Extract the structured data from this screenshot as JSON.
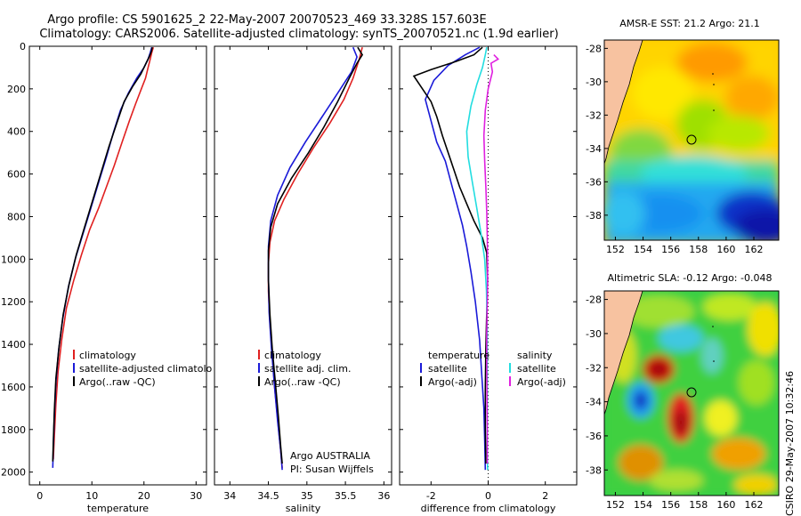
{
  "header": {
    "line1": "Argo profile: CS 5901625_2 22-May-2007 20070523_469 33.328S 157.603E",
    "line2": "Climatology: CARS2006. Satellite-adjusted climatology: synTS_20070521.nc (1.9d earlier)"
  },
  "colors": {
    "climatology": "#e02020",
    "satellite": "#1a1ad8",
    "argo": "#000000",
    "sal_satellite": "#22dde0",
    "sal_argo": "#e020e0",
    "land": "#f7c2a0"
  },
  "chart_data": [
    {
      "id": "temperature",
      "type": "line",
      "xlabel": "temperature",
      "ylabel": "",
      "xlim": [
        -2,
        32
      ],
      "ylim": [
        0,
        2060
      ],
      "y_reversed": true,
      "xticks": [
        "0",
        "10",
        "20",
        "30"
      ],
      "xtick_values": [
        0,
        10,
        20,
        30
      ],
      "yticks": [
        "0",
        "200",
        "400",
        "600",
        "800",
        "1000",
        "1200",
        "1400",
        "1600",
        "1800",
        "2000"
      ],
      "ytick_values": [
        0,
        200,
        400,
        600,
        800,
        1000,
        1200,
        1400,
        1600,
        1800,
        2000
      ],
      "legend": [
        "climatology",
        "satellite-adjusted climatolo",
        "Argo(..raw -QC)"
      ],
      "series": [
        {
          "name": "climatology",
          "color": "#e02020",
          "points": [
            [
              21.8,
              5
            ],
            [
              21.5,
              30
            ],
            [
              21.2,
              60
            ],
            [
              20.8,
              100
            ],
            [
              20.3,
              150
            ],
            [
              19.5,
              200
            ],
            [
              18.4,
              270
            ],
            [
              17.2,
              350
            ],
            [
              15.8,
              450
            ],
            [
              14.3,
              560
            ],
            [
              12.8,
              660
            ],
            [
              11.3,
              760
            ],
            [
              9.6,
              860
            ],
            [
              8,
              980
            ],
            [
              6.5,
              1100
            ],
            [
              5.1,
              1230
            ],
            [
              4.2,
              1380
            ],
            [
              3.5,
              1530
            ],
            [
              3.1,
              1680
            ],
            [
              2.8,
              1830
            ],
            [
              2.6,
              1940
            ]
          ]
        },
        {
          "name": "satellite-adjusted climatology",
          "color": "#1a1ad8",
          "points": [
            [
              21.5,
              5
            ],
            [
              21.2,
              30
            ],
            [
              20.8,
              60
            ],
            [
              20,
              100
            ],
            [
              18.6,
              150
            ],
            [
              17,
              220
            ],
            [
              15.5,
              300
            ],
            [
              14.2,
              400
            ],
            [
              12.8,
              520
            ],
            [
              11.3,
              640
            ],
            [
              9.8,
              760
            ],
            [
              8.3,
              880
            ],
            [
              6.8,
              1000
            ],
            [
              5.5,
              1130
            ],
            [
              4.4,
              1280
            ],
            [
              3.6,
              1430
            ],
            [
              3.1,
              1580
            ],
            [
              2.8,
              1730
            ],
            [
              2.6,
              1880
            ],
            [
              2.5,
              1980
            ]
          ]
        },
        {
          "name": "Argo(..raw -QC)",
          "color": "#000000",
          "points": [
            [
              21.6,
              5
            ],
            [
              21.4,
              25
            ],
            [
              21,
              50
            ],
            [
              20.4,
              80
            ],
            [
              19.4,
              130
            ],
            [
              17.8,
              190
            ],
            [
              16.2,
              260
            ],
            [
              14.8,
              360
            ],
            [
              13.3,
              470
            ],
            [
              11.8,
              590
            ],
            [
              10.2,
              720
            ],
            [
              8.6,
              850
            ],
            [
              7,
              980
            ],
            [
              5.6,
              1120
            ],
            [
              4.5,
              1260
            ],
            [
              3.7,
              1410
            ],
            [
              3.1,
              1560
            ],
            [
              2.8,
              1710
            ],
            [
              2.6,
              1860
            ],
            [
              2.5,
              1950
            ]
          ]
        }
      ]
    },
    {
      "id": "salinity",
      "type": "line",
      "xlabel": "salinity",
      "ylabel": "",
      "xlim": [
        33.8,
        36.1
      ],
      "ylim": [
        0,
        2060
      ],
      "y_reversed": true,
      "xticks": [
        "34",
        "34.5",
        "35",
        "35.5",
        "36"
      ],
      "xtick_values": [
        34,
        34.5,
        35,
        35.5,
        36
      ],
      "legend": [
        "climatology",
        "satellite adj. clim.",
        "Argo(..raw -QC)"
      ],
      "series": [
        {
          "name": "climatology",
          "color": "#e02020",
          "points": [
            [
              35.72,
              5
            ],
            [
              35.68,
              60
            ],
            [
              35.6,
              150
            ],
            [
              35.48,
              250
            ],
            [
              35.3,
              360
            ],
            [
              35.08,
              480
            ],
            [
              34.88,
              600
            ],
            [
              34.7,
              720
            ],
            [
              34.58,
              820
            ],
            [
              34.52,
              920
            ],
            [
              34.5,
              1020
            ],
            [
              34.5,
              1150
            ],
            [
              34.52,
              1300
            ],
            [
              34.55,
              1450
            ],
            [
              34.58,
              1600
            ],
            [
              34.62,
              1750
            ],
            [
              34.66,
              1900
            ],
            [
              34.68,
              1980
            ]
          ]
        },
        {
          "name": "satellite adj. clim.",
          "color": "#1a1ad8",
          "points": [
            [
              35.6,
              5
            ],
            [
              35.65,
              50
            ],
            [
              35.58,
              120
            ],
            [
              35.4,
              220
            ],
            [
              35.2,
              330
            ],
            [
              34.98,
              450
            ],
            [
              34.78,
              570
            ],
            [
              34.62,
              700
            ],
            [
              34.53,
              820
            ],
            [
              34.5,
              940
            ],
            [
              34.5,
              1080
            ],
            [
              34.51,
              1250
            ],
            [
              34.54,
              1420
            ],
            [
              34.58,
              1600
            ],
            [
              34.62,
              1760
            ],
            [
              34.66,
              1900
            ],
            [
              34.68,
              1990
            ]
          ]
        },
        {
          "name": "Argo(..raw -QC)",
          "color": "#000000",
          "points": [
            [
              35.66,
              5
            ],
            [
              35.72,
              40
            ],
            [
              35.65,
              80
            ],
            [
              35.55,
              150
            ],
            [
              35.4,
              260
            ],
            [
              35.22,
              380
            ],
            [
              35.02,
              500
            ],
            [
              34.8,
              620
            ],
            [
              34.62,
              740
            ],
            [
              34.53,
              850
            ],
            [
              34.5,
              960
            ],
            [
              34.5,
              1100
            ],
            [
              34.52,
              1260
            ],
            [
              34.55,
              1420
            ],
            [
              34.59,
              1580
            ],
            [
              34.63,
              1740
            ],
            [
              34.66,
              1880
            ],
            [
              34.68,
              1960
            ]
          ]
        }
      ],
      "annotation": [
        "Argo AUSTRALIA",
        "PI: Susan Wijffels"
      ]
    },
    {
      "id": "difference",
      "type": "line",
      "xlabel": "difference from climatology",
      "ylabel": "",
      "xlim": [
        -3.1,
        3.1
      ],
      "ylim": [
        0,
        2060
      ],
      "y_reversed": true,
      "xticks": [
        "-2",
        "0",
        "2"
      ],
      "xtick_values": [
        -2,
        0,
        2
      ],
      "legend_left_title": "temperature",
      "legend_left": [
        "satellite",
        "Argo(-adj)"
      ],
      "legend_right_title": "salinity",
      "legend_right": [
        "satellite",
        "Argo(-adj)"
      ],
      "series": [
        {
          "name": "temperature satellite",
          "color": "#1a1ad8",
          "points": [
            [
              -0.3,
              5
            ],
            [
              -0.8,
              40
            ],
            [
              -1.4,
              90
            ],
            [
              -1.9,
              160
            ],
            [
              -2.2,
              250
            ],
            [
              -2.0,
              350
            ],
            [
              -1.8,
              450
            ],
            [
              -1.5,
              540
            ],
            [
              -1.3,
              640
            ],
            [
              -1.1,
              740
            ],
            [
              -0.9,
              840
            ],
            [
              -0.75,
              940
            ],
            [
              -0.6,
              1060
            ],
            [
              -0.45,
              1200
            ],
            [
              -0.3,
              1380
            ],
            [
              -0.22,
              1550
            ],
            [
              -0.15,
              1700
            ],
            [
              -0.12,
              1850
            ],
            [
              -0.1,
              1990
            ]
          ]
        },
        {
          "name": "temperature Argo(-adj)",
          "color": "#000000",
          "points": [
            [
              -0.2,
              5
            ],
            [
              -0.5,
              40
            ],
            [
              -1.1,
              70
            ],
            [
              -2.0,
              110
            ],
            [
              -2.6,
              140
            ],
            [
              -2.3,
              200
            ],
            [
              -2.0,
              260
            ],
            [
              -1.8,
              330
            ],
            [
              -1.6,
              420
            ],
            [
              -1.4,
              500
            ],
            [
              -1.2,
              580
            ],
            [
              -1.0,
              660
            ],
            [
              -0.75,
              740
            ],
            [
              -0.5,
              820
            ],
            [
              -0.2,
              900
            ],
            [
              -0.05,
              970
            ],
            [
              -0.02,
              1100
            ],
            [
              -0.05,
              1250
            ],
            [
              -0.08,
              1420
            ],
            [
              -0.1,
              1600
            ],
            [
              -0.1,
              1800
            ],
            [
              -0.08,
              1960
            ]
          ]
        },
        {
          "name": "salinity satellite",
          "color": "#22dde0",
          "points": [
            [
              -0.05,
              5
            ],
            [
              -0.1,
              40
            ],
            [
              -0.2,
              100
            ],
            [
              -0.4,
              180
            ],
            [
              -0.6,
              280
            ],
            [
              -0.75,
              400
            ],
            [
              -0.7,
              520
            ],
            [
              -0.55,
              640
            ],
            [
              -0.4,
              760
            ],
            [
              -0.25,
              880
            ],
            [
              -0.12,
              1000
            ],
            [
              -0.06,
              1150
            ],
            [
              -0.03,
              1350
            ],
            [
              -0.03,
              1550
            ],
            [
              -0.03,
              1750
            ],
            [
              -0.03,
              1900
            ],
            [
              -0.02,
              1990
            ]
          ]
        },
        {
          "name": "salinity Argo(-adj)",
          "color": "#e020e0",
          "points": [
            [
              0.2,
              40
            ],
            [
              0.35,
              60
            ],
            [
              0.1,
              80
            ],
            [
              0.15,
              120
            ],
            [
              0.0,
              200
            ],
            [
              -0.1,
              300
            ],
            [
              -0.15,
              420
            ],
            [
              -0.12,
              540
            ],
            [
              -0.08,
              660
            ],
            [
              -0.05,
              780
            ],
            [
              -0.03,
              900
            ],
            [
              -0.02,
              1050
            ],
            [
              -0.03,
              1200
            ],
            [
              -0.05,
              1350
            ],
            [
              -0.05,
              1500
            ],
            [
              -0.04,
              1650
            ],
            [
              -0.03,
              1800
            ],
            [
              -0.03,
              1960
            ]
          ]
        }
      ]
    }
  ],
  "maps": [
    {
      "id": "sst",
      "title": "AMSR-E SST: 21.2 Argo: 21.1",
      "yticks": [
        "-28",
        "-30",
        "-32",
        "-34",
        "-36",
        "-38"
      ],
      "ytick_values": [
        -28,
        -30,
        -32,
        -34,
        -36,
        -38
      ],
      "xticks": [
        "152",
        "154",
        "156",
        "158",
        "160",
        "162"
      ],
      "xtick_values": [
        152,
        154,
        156,
        158,
        160,
        162
      ],
      "argo_marker_label": "Argo float position"
    },
    {
      "id": "sla",
      "title": "Altimetric SLA: -0.12 Argo: -0.048",
      "yticks": [
        "-28",
        "-30",
        "-32",
        "-34",
        "-36",
        "-38"
      ],
      "ytick_values": [
        -28,
        -30,
        -32,
        -34,
        -36,
        -38
      ],
      "xticks": [
        "152",
        "154",
        "156",
        "158",
        "160",
        "162"
      ],
      "xtick_values": [
        152,
        154,
        156,
        158,
        160,
        162
      ],
      "argo_marker_label": "Argo float position"
    }
  ],
  "footer_vertical": "CSIRO 29-May-2007 10:32:46"
}
